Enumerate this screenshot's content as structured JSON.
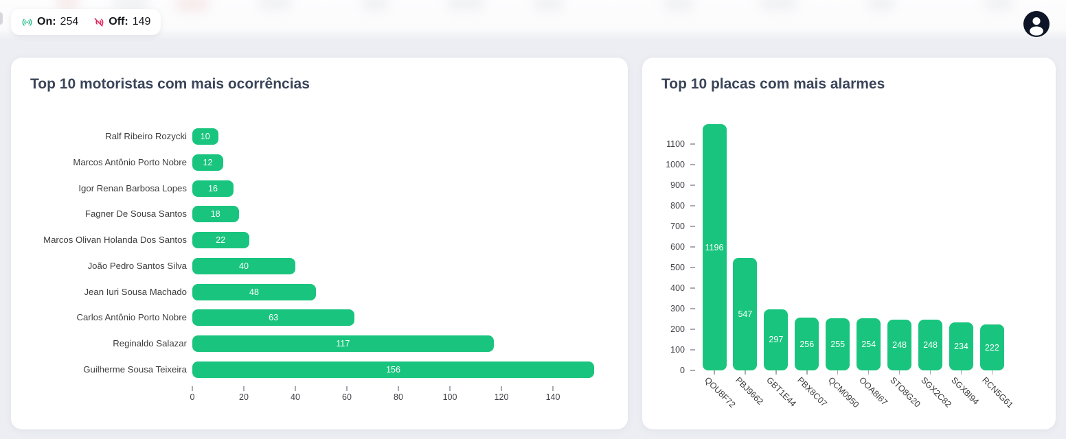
{
  "header": {
    "status_pill": {
      "on_label": "On:",
      "on_value": "254",
      "off_label": "Off:",
      "off_value": "149"
    },
    "colors": {
      "on_icon": "#2fbe8f",
      "off_icon": "#e21c56"
    }
  },
  "colors": {
    "page_bg": "#eceef3",
    "card_bg": "#ffffff",
    "bar_green": "#19c57e",
    "avatar_bg": "#0e1526"
  },
  "chart_data": [
    {
      "type": "bar",
      "orientation": "horizontal",
      "title": "Top 10 motoristas com mais ocorrências",
      "categories": [
        "Ralf Ribeiro Rozycki",
        "Marcos Antônio Porto Nobre",
        "Igor Renan Barbosa Lopes",
        "Fagner De Sousa Santos",
        "Marcos Olivan Holanda Dos Santos",
        "João Pedro Santos Silva",
        "Jean Iuri Sousa Machado",
        "Carlos Antônio Porto Nobre",
        "Reginaldo Salazar",
        "Guilherme Sousa Teixeira"
      ],
      "values": [
        10,
        12,
        16,
        18,
        22,
        40,
        48,
        63,
        117,
        156
      ],
      "xticks": [
        0,
        20,
        40,
        60,
        80,
        100,
        120,
        140
      ],
      "xlim": [
        0,
        160
      ],
      "bar_color": "#19c57e",
      "value_label_color": "#ffffff",
      "grid": false
    },
    {
      "type": "bar",
      "orientation": "vertical",
      "title": "Top 10 placas com mais alarmes",
      "categories": [
        "QOU8F72",
        "PBJ9662",
        "GBT1E44",
        "PBX8C07",
        "QCM0950",
        "OOA8I67",
        "STO8G20",
        "SGX2C82",
        "SGX8I94",
        "RCN5G61"
      ],
      "values": [
        1196,
        547,
        297,
        256,
        255,
        254,
        248,
        248,
        234,
        222
      ],
      "yticks": [
        0,
        100,
        200,
        300,
        400,
        500,
        600,
        700,
        800,
        900,
        1000,
        1100
      ],
      "ylim": [
        0,
        1200
      ],
      "bar_color": "#19c57e",
      "value_label_color": "#ffffff",
      "grid": false
    }
  ]
}
